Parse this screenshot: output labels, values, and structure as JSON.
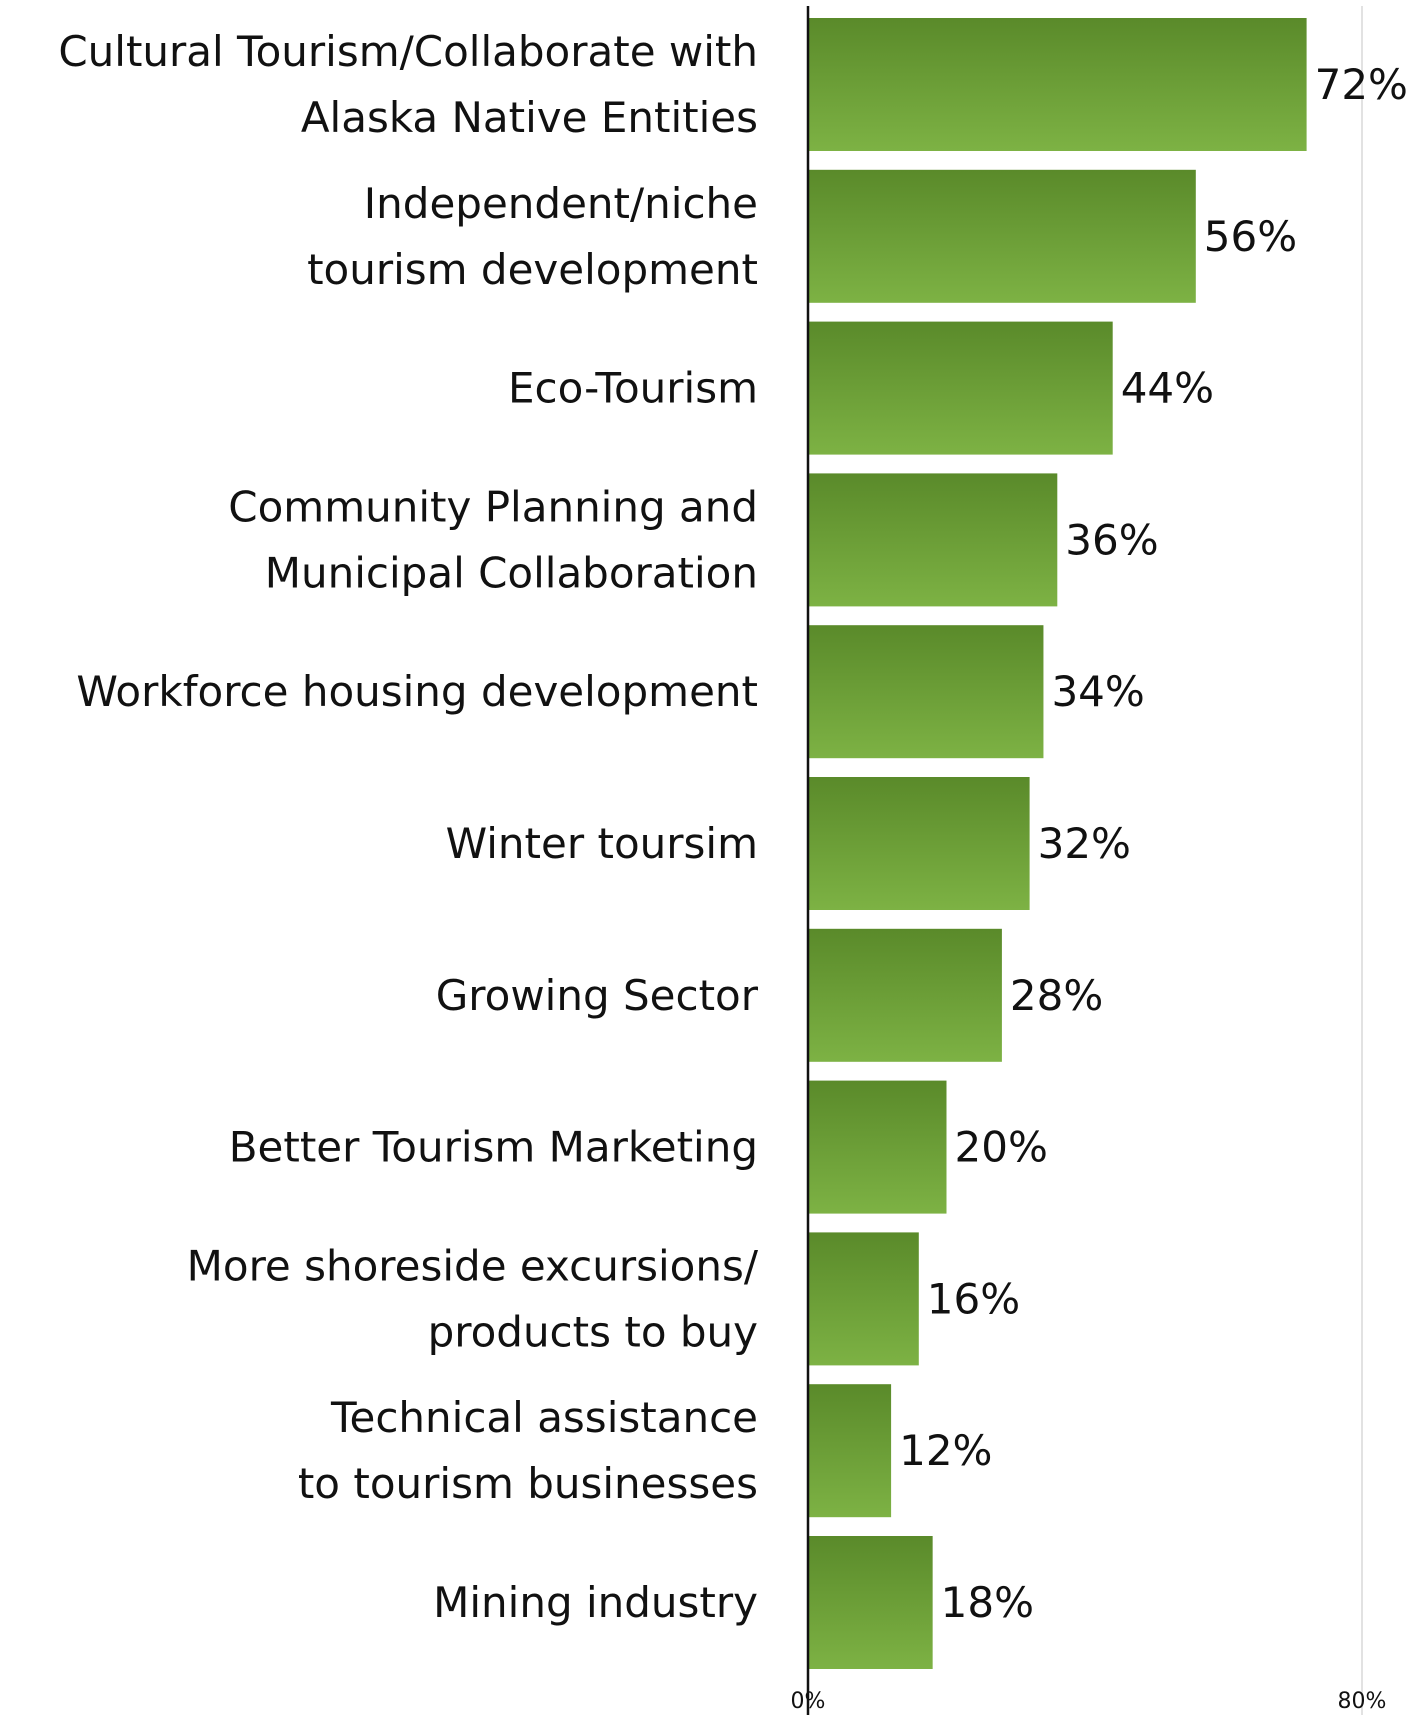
{
  "chart_data": {
    "type": "bar",
    "orientation": "horizontal",
    "categories": [
      [
        "Cultural Tourism/Collaborate with",
        "Alaska Native Entities"
      ],
      [
        "Independent/niche",
        "tourism development"
      ],
      [
        "Eco-Tourism"
      ],
      [
        "Community Planning and",
        "Municipal Collaboration"
      ],
      [
        "Workforce housing development"
      ],
      [
        "Winter toursim"
      ],
      [
        "Growing Sector"
      ],
      [
        "Better Tourism Marketing"
      ],
      [
        "More shoreside excursions/",
        "products to buy"
      ],
      [
        "Technical assistance",
        "to tourism businesses"
      ],
      [
        "Mining industry"
      ]
    ],
    "values": [
      72,
      56,
      44,
      36,
      34,
      32,
      28,
      20,
      16,
      12,
      18
    ],
    "value_labels": [
      "72%",
      "56%",
      "44%",
      "36%",
      "34%",
      "32%",
      "28%",
      "20%",
      "16%",
      "12%",
      "18%"
    ],
    "xlim": [
      0,
      80
    ],
    "x_ticks": [
      {
        "value": 0,
        "label": "0%"
      },
      {
        "value": 80,
        "label": "80%"
      }
    ],
    "title": "",
    "xlabel": "",
    "ylabel": "",
    "grid": "vertical line at 80%",
    "legend": "none",
    "colors": {
      "bar_top": "#5a8a2a",
      "bar_bottom": "#7db244",
      "axis": "#111111",
      "grid": "#d9d9d9"
    }
  }
}
